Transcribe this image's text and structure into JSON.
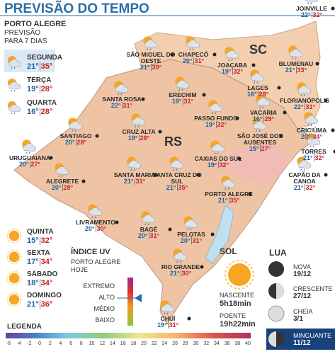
{
  "header": {
    "title": "PREVISÃO DO TEMPO"
  },
  "forecast": {
    "city": "PORTO ALEGRE",
    "subtitle": "PREVISÃO",
    "period": "PARA 7 DIAS",
    "days": [
      {
        "day": "SEGUNDA",
        "min": "21°",
        "max": "35°"
      },
      {
        "day": "TERÇA",
        "min": "19°",
        "max": "28°"
      },
      {
        "day": "QUARTA",
        "min": "16°",
        "max": "28°"
      },
      {
        "day": "QUINTA",
        "min": "15°",
        "max": "32°"
      },
      {
        "day": "SEXTA",
        "min": "17°",
        "max": "34°"
      },
      {
        "day": "SÁBADO",
        "min": "18°",
        "max": "34°"
      },
      {
        "day": "DOMINGO",
        "min": "21°",
        "max": "36°"
      }
    ]
  },
  "map": {
    "states": [
      "SC",
      "RS"
    ],
    "cities": [
      {
        "name": "SÃO MIGUEL DO OESTE",
        "min": "21°",
        "max": "30°"
      },
      {
        "name": "CHAPECÓ",
        "min": "20°",
        "max": "31°"
      },
      {
        "name": "JOAÇABA",
        "min": "19°",
        "max": "32°"
      },
      {
        "name": "JOINVILLE",
        "min": "22°",
        "max": "32°"
      },
      {
        "name": "BLUMENAU",
        "min": "21°",
        "max": "33°"
      },
      {
        "name": "FLORIANÓPOLIS",
        "min": "22°",
        "max": "31°"
      },
      {
        "name": "LAGES",
        "min": "16°",
        "max": "28°"
      },
      {
        "name": "SANTA ROSA",
        "min": "22°",
        "max": "31°"
      },
      {
        "name": "ERECHIM",
        "min": "19°",
        "max": "31°"
      },
      {
        "name": "PASSO FUNDO",
        "min": "19°",
        "max": "32°"
      },
      {
        "name": "VACARIA",
        "min": "16°",
        "max": "29°"
      },
      {
        "name": "SÃO JOSÉ DOS AUSENTES",
        "min": "15°",
        "max": "27°"
      },
      {
        "name": "CRICIÚMA",
        "min": "20°",
        "max": "34°"
      },
      {
        "name": "TORRES",
        "min": "21°",
        "max": "32°"
      },
      {
        "name": "CAPÃO DA CANOA",
        "min": "21°",
        "max": "32°"
      },
      {
        "name": "SANTIAGO",
        "min": "20°",
        "max": "28°"
      },
      {
        "name": "CRUZ ALTA",
        "min": "19°",
        "max": "28°"
      },
      {
        "name": "URUGUAIANA",
        "min": "20°",
        "max": "27°"
      },
      {
        "name": "ALEGRETE",
        "min": "20°",
        "max": "28°"
      },
      {
        "name": "SANTA MARIA",
        "min": "21°",
        "max": "31°"
      },
      {
        "name": "SANTA CRUZ DO SUL",
        "min": "21°",
        "max": "35°"
      },
      {
        "name": "CAXIAS DO SUL",
        "min": "19°",
        "max": "32°"
      },
      {
        "name": "PORTO ALEGRE",
        "min": "21°",
        "max": "35°"
      },
      {
        "name": "LIVRAMENTO",
        "min": "20°",
        "max": "30°"
      },
      {
        "name": "BAGÉ",
        "min": "20°",
        "max": "31°"
      },
      {
        "name": "PELOTAS",
        "min": "20°",
        "max": "31°"
      },
      {
        "name": "RIO GRANDE",
        "min": "21°",
        "max": "30°"
      },
      {
        "name": "CHUÍ",
        "min": "19°",
        "max": "31°"
      }
    ]
  },
  "uv": {
    "title": "ÍNDICE UV",
    "place": "PORTO ALEGRE",
    "when": "HOJE",
    "levels": [
      "EXTREMO",
      "ALTO",
      "MÉDIO",
      "BAIXO"
    ]
  },
  "sun": {
    "title": "SOL",
    "rise_label": "NASCENTE",
    "rise": "5h18min",
    "set_label": "POENTE",
    "set": "19h22min"
  },
  "moon": {
    "title": "LUA",
    "phases": [
      {
        "name": "NOVA",
        "date": "19/12"
      },
      {
        "name": "CRESCENTE",
        "date": "27/12"
      },
      {
        "name": "CHEIA",
        "date": "3/1"
      },
      {
        "name": "MINGUANTE",
        "date": "11/12"
      }
    ]
  },
  "legend": {
    "title": "LEGENDA",
    "ticks": [
      -6,
      -4,
      -2,
      0,
      2,
      4,
      6,
      8,
      10,
      12,
      14,
      16,
      18,
      20,
      22,
      24,
      26,
      28,
      30,
      32,
      34,
      36,
      38,
      40
    ]
  }
}
